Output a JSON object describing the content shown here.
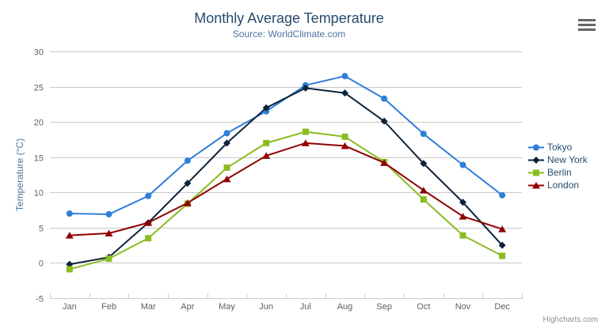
{
  "chart_data": {
    "type": "line",
    "title": "Monthly Average Temperature",
    "subtitle": "Source: WorldClimate.com",
    "xlabel": "",
    "ylabel": "Temperature (°C)",
    "categories": [
      "Jan",
      "Feb",
      "Mar",
      "Apr",
      "May",
      "Jun",
      "Jul",
      "Aug",
      "Sep",
      "Oct",
      "Nov",
      "Dec"
    ],
    "ylim": [
      -5,
      30
    ],
    "ytick_step": 5,
    "grid": true,
    "legend_position": "right",
    "series": [
      {
        "name": "Tokyo",
        "color": "#2f7ed8",
        "marker": "circle",
        "values": [
          7.0,
          6.9,
          9.5,
          14.5,
          18.4,
          21.5,
          25.2,
          26.5,
          23.3,
          18.3,
          13.9,
          9.6
        ]
      },
      {
        "name": "New York",
        "color": "#0d233a",
        "marker": "diamond",
        "values": [
          -0.2,
          0.8,
          5.7,
          11.3,
          17.0,
          22.0,
          24.8,
          24.1,
          20.1,
          14.1,
          8.6,
          2.5
        ]
      },
      {
        "name": "Berlin",
        "color": "#8bbc21",
        "marker": "square",
        "values": [
          -0.9,
          0.6,
          3.5,
          8.4,
          13.5,
          17.0,
          18.6,
          17.9,
          14.3,
          9.0,
          3.9,
          1.0
        ]
      },
      {
        "name": "London",
        "color": "#910000",
        "marker": "triangle",
        "values": [
          3.9,
          4.2,
          5.7,
          8.5,
          11.9,
          15.2,
          17.0,
          16.6,
          14.2,
          10.3,
          6.6,
          4.8
        ]
      }
    ]
  },
  "credit": {
    "label": "Highcharts.com"
  },
  "colors": {
    "background": "#ffffff",
    "title": "#274b6d",
    "subtitle": "#4d759e",
    "axis_title": "#4d759e",
    "tick_label": "#606060",
    "gridline": "#c8c8c8",
    "axis_line": "#c0d0e0",
    "legend_text": "#274b6d",
    "credit": "#909090",
    "export_icon": "#666666"
  }
}
